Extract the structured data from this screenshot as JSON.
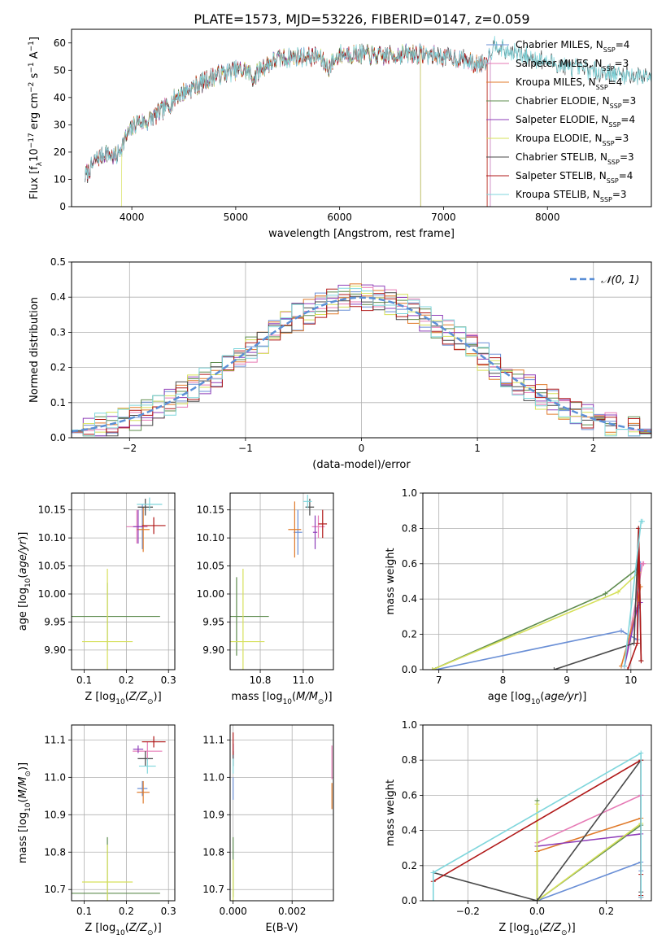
{
  "figure": {
    "title": "PLATE=1573, MJD=53226, FIBERID=0147, z=0.059"
  },
  "colors": {
    "Chabrier MILES": "#6a8fd6",
    "Salpeter MILES": "#e67ab5",
    "Kroupa MILES": "#e07a2a",
    "Chabrier ELODIE": "#5e8c4e",
    "Salpeter ELODIE": "#8e3cb8",
    "Kroupa ELODIE": "#d6e05a",
    "Chabrier STELIB": "#4a4a4a",
    "Salpeter STELIB": "#b01818",
    "Kroupa STELIB": "#7fd6dc"
  },
  "chart_data": [
    {
      "id": "spectrum",
      "type": "line",
      "xlabel": "wavelength [Angstrom, rest frame]",
      "ylabel": "Flux [f_λ10^{-17} erg cm^{-2} s^{-1} A^{-1}]",
      "xlim": [
        3420,
        9000
      ],
      "ylim": [
        0,
        65
      ],
      "xticks": [
        4000,
        5000,
        6000,
        7000,
        8000
      ],
      "yticks": [
        0,
        10,
        20,
        30,
        40,
        50,
        60
      ],
      "grid": false,
      "legend_placement": "right",
      "legend": [
        {
          "model": "Chabrier MILES",
          "label": "Chabrier MILES, N",
          "sub": "SSP",
          "tail": "=4"
        },
        {
          "model": "Salpeter MILES",
          "label": "Salpeter MILES, N",
          "sub": "SSP",
          "tail": "=3"
        },
        {
          "model": "Kroupa MILES",
          "label": "Kroupa MILES, N",
          "sub": "SSP",
          "tail": "=4"
        },
        {
          "model": "Chabrier ELODIE",
          "label": "Chabrier ELODIE, N",
          "sub": "SSP",
          "tail": "=3"
        },
        {
          "model": "Salpeter ELODIE",
          "label": "Salpeter ELODIE, N",
          "sub": "SSP",
          "tail": "=4"
        },
        {
          "model": "Kroupa ELODIE",
          "label": "Kroupa ELODIE, N",
          "sub": "SSP",
          "tail": "=3"
        },
        {
          "model": "Chabrier STELIB",
          "label": "Chabrier STELIB, N",
          "sub": "SSP",
          "tail": "=3"
        },
        {
          "model": "Salpeter STELIB",
          "label": "Salpeter STELIB, N",
          "sub": "SSP",
          "tail": "=4"
        },
        {
          "model": "Kroupa STELIB",
          "label": "Kroupa STELIB, N",
          "sub": "SSP",
          "tail": "=3"
        }
      ],
      "continuum": [
        [
          3550,
          11
        ],
        [
          3650,
          17
        ],
        [
          3750,
          20
        ],
        [
          3850,
          18
        ],
        [
          3950,
          26
        ],
        [
          4050,
          31
        ],
        [
          4150,
          31
        ],
        [
          4250,
          34
        ],
        [
          4350,
          37
        ],
        [
          4450,
          41
        ],
        [
          4600,
          44
        ],
        [
          4800,
          48
        ],
        [
          5000,
          50
        ],
        [
          5100,
          50
        ],
        [
          5170,
          47
        ],
        [
          5250,
          51
        ],
        [
          5400,
          54
        ],
        [
          5600,
          55
        ],
        [
          5800,
          55
        ],
        [
          5890,
          51
        ],
        [
          6000,
          56
        ],
        [
          6200,
          56
        ],
        [
          6400,
          55
        ],
        [
          6600,
          56
        ],
        [
          6800,
          56
        ],
        [
          7000,
          55
        ],
        [
          7200,
          54
        ],
        [
          7300,
          52
        ],
        [
          7400,
          53
        ],
        [
          7500,
          60
        ],
        [
          7600,
          57
        ],
        [
          7800,
          55
        ],
        [
          8000,
          53
        ],
        [
          8200,
          51
        ],
        [
          8400,
          50
        ],
        [
          8600,
          49
        ],
        [
          8800,
          48
        ],
        [
          9000,
          48
        ]
      ],
      "model_ranges": {
        "Chabrier MILES": [
          3550,
          7450
        ],
        "Salpeter MILES": [
          3550,
          7450
        ],
        "Kroupa MILES": [
          3550,
          7420
        ],
        "Chabrier ELODIE": [
          3550,
          6780
        ],
        "Salpeter ELODIE": [
          3550,
          6780
        ],
        "Kroupa ELODIE": [
          3900,
          6780
        ],
        "Chabrier STELIB": [
          3550,
          9000
        ],
        "Salpeter STELIB": [
          3550,
          7420
        ],
        "Kroupa STELIB": [
          3550,
          9000
        ]
      }
    },
    {
      "id": "residual-histogram",
      "type": "histogram",
      "xlabel": "(data-model)/error",
      "ylabel": "Normed distribution",
      "xlim": [
        -2.5,
        2.5
      ],
      "ylim": [
        0,
        0.5
      ],
      "xticks": [
        -2,
        -1,
        0,
        1,
        2
      ],
      "yticks": [
        0.0,
        0.1,
        0.2,
        0.3,
        0.4,
        0.5
      ],
      "grid": true,
      "legend_placement": "top-right",
      "legend": [
        {
          "label": "𝒩(0, 1)",
          "style": "dashed",
          "color": "#5b8fd6"
        }
      ],
      "bin_width": 0.1,
      "note": "nine step histograms scattered around the standard normal curve"
    },
    {
      "id": "age-vs-Z",
      "type": "errorbar",
      "xlabel": "Z [log10(Z/Z⊙)]",
      "ylabel": "age  [log10(age/yr)]",
      "xlim": [
        0.07,
        0.315
      ],
      "ylim": [
        9.865,
        10.18
      ],
      "xticks": [
        0.1,
        0.2,
        0.3
      ],
      "yticks": [
        9.9,
        9.95,
        10.0,
        10.05,
        10.1,
        10.15
      ],
      "grid": true,
      "points": [
        {
          "model": "Chabrier MILES",
          "x": 0.238,
          "xerr": 0.012,
          "y": 10.12,
          "yerr": 0.04
        },
        {
          "model": "Salpeter MILES",
          "x": 0.225,
          "xerr": 0.025,
          "y": 10.12,
          "yerr": 0.03
        },
        {
          "model": "Kroupa MILES",
          "x": 0.24,
          "xerr": 0.015,
          "y": 10.115,
          "yerr": 0.04
        },
        {
          "model": "Chabrier ELODIE",
          "x": 0.155,
          "xerr": 0.125,
          "y": 9.96,
          "yerr": 0.06
        },
        {
          "model": "Salpeter ELODIE",
          "x": 0.228,
          "xerr": 0.012,
          "y": 10.12,
          "yerr": 0.03
        },
        {
          "model": "Kroupa ELODIE",
          "x": 0.155,
          "xerr": 0.06,
          "y": 9.915,
          "yerr": 0.13
        },
        {
          "model": "Chabrier STELIB",
          "x": 0.245,
          "xerr": 0.018,
          "y": 10.155,
          "yerr": 0.015
        },
        {
          "model": "Salpeter STELIB",
          "x": 0.265,
          "xerr": 0.028,
          "y": 10.122,
          "yerr": 0.015
        },
        {
          "model": "Kroupa STELIB",
          "x": 0.255,
          "xerr": 0.03,
          "y": 10.16,
          "yerr": 0.012
        }
      ]
    },
    {
      "id": "age-vs-mass",
      "type": "errorbar",
      "xlabel": "mass [log10(M/M⊙)]",
      "ylabel": "",
      "xlim": [
        10.66,
        11.14
      ],
      "ylim": [
        9.865,
        10.18
      ],
      "xticks": [
        10.8,
        11.0
      ],
      "yticks": [
        9.9,
        9.95,
        10.0,
        10.05,
        10.1,
        10.15
      ],
      "grid": true,
      "points": [
        {
          "model": "Chabrier MILES",
          "x": 10.975,
          "xerr": 0.02,
          "y": 10.11,
          "yerr": 0.04
        },
        {
          "model": "Salpeter MILES",
          "x": 11.07,
          "xerr": 0.03,
          "y": 10.12,
          "yerr": 0.02
        },
        {
          "model": "Kroupa MILES",
          "x": 10.96,
          "xerr": 0.03,
          "y": 10.115,
          "yerr": 0.05
        },
        {
          "model": "Chabrier ELODIE",
          "x": 10.69,
          "xerr": 0.15,
          "y": 9.96,
          "yerr": 0.07
        },
        {
          "model": "Salpeter ELODIE",
          "x": 11.055,
          "xerr": 0.01,
          "y": 10.11,
          "yerr": 0.03
        },
        {
          "model": "Kroupa ELODIE",
          "x": 10.72,
          "xerr": 0.1,
          "y": 9.915,
          "yerr": 0.13
        },
        {
          "model": "Chabrier STELIB",
          "x": 11.03,
          "xerr": 0.02,
          "y": 10.155,
          "yerr": 0.015
        },
        {
          "model": "Salpeter STELIB",
          "x": 11.09,
          "xerr": 0.02,
          "y": 10.125,
          "yerr": 0.025
        },
        {
          "model": "Kroupa STELIB",
          "x": 11.02,
          "xerr": 0.02,
          "y": 10.165,
          "yerr": 0.012
        }
      ]
    },
    {
      "id": "mass-weight-vs-age",
      "type": "line",
      "xlabel": "age  [log10(age/yr)]",
      "ylabel": "mass weight",
      "xlim": [
        6.75,
        10.32
      ],
      "ylim": [
        0,
        1
      ],
      "xticks": [
        7,
        8,
        9,
        10
      ],
      "yticks": [
        0.0,
        0.2,
        0.4,
        0.6,
        0.8,
        1.0
      ],
      "grid": true,
      "series": [
        {
          "model": "Chabrier MILES",
          "x": [
            6.95,
            9.85,
            10.1,
            10.15
          ],
          "y": [
            0.0,
            0.22,
            0.17,
            0.6
          ]
        },
        {
          "model": "Salpeter MILES",
          "x": [
            9.9,
            10.18,
            10.2
          ],
          "y": [
            0.02,
            0.6,
            0.6
          ]
        },
        {
          "model": "Kroupa MILES",
          "x": [
            9.85,
            10.1,
            10.15
          ],
          "y": [
            0.02,
            0.35,
            0.47
          ]
        },
        {
          "model": "Chabrier ELODIE",
          "x": [
            6.9,
            9.6,
            10.1
          ],
          "y": [
            0.0,
            0.43,
            0.57
          ]
        },
        {
          "model": "Salpeter ELODIE",
          "x": [
            9.9,
            10.1,
            10.15
          ],
          "y": [
            0.02,
            0.35,
            0.38
          ]
        },
        {
          "model": "Kroupa ELODIE",
          "x": [
            6.9,
            9.8,
            10.12
          ],
          "y": [
            0.0,
            0.44,
            0.55
          ]
        },
        {
          "model": "Chabrier STELIB",
          "x": [
            8.8,
            10.05,
            10.12,
            10.16
          ],
          "y": [
            0.0,
            0.15,
            0.8,
            0.05
          ]
        },
        {
          "model": "Salpeter STELIB",
          "x": [
            9.95,
            10.1,
            10.12,
            10.16
          ],
          "y": [
            0.0,
            0.15,
            0.8,
            0.05
          ]
        },
        {
          "model": "Kroupa STELIB",
          "x": [
            9.9,
            10.16,
            10.18
          ],
          "y": [
            0.02,
            0.84,
            0.84
          ]
        }
      ]
    },
    {
      "id": "mass-vs-Z",
      "type": "errorbar",
      "xlabel": "Z [log10(Z/Z⊙)]",
      "ylabel": "mass [log10(M/M⊙)]",
      "xlim": [
        0.07,
        0.315
      ],
      "ylim": [
        10.67,
        11.14
      ],
      "xticks": [
        0.1,
        0.2,
        0.3
      ],
      "yticks": [
        10.7,
        10.8,
        10.9,
        11.0,
        11.1
      ],
      "grid": true,
      "points": [
        {
          "model": "Chabrier MILES",
          "x": 0.238,
          "xerr": 0.012,
          "y": 10.97,
          "yerr": 0.02
        },
        {
          "model": "Salpeter MILES",
          "x": 0.25,
          "xerr": 0.035,
          "y": 11.07,
          "yerr": 0.025
        },
        {
          "model": "Kroupa MILES",
          "x": 0.24,
          "xerr": 0.015,
          "y": 10.96,
          "yerr": 0.03
        },
        {
          "model": "Chabrier ELODIE",
          "x": 0.155,
          "xerr": 0.125,
          "y": 10.69,
          "yerr": 0.15
        },
        {
          "model": "Salpeter ELODIE",
          "x": 0.228,
          "xerr": 0.012,
          "y": 11.075,
          "yerr": 0.01
        },
        {
          "model": "Kroupa ELODIE",
          "x": 0.155,
          "xerr": 0.06,
          "y": 10.72,
          "yerr": 0.1
        },
        {
          "model": "Chabrier STELIB",
          "x": 0.245,
          "xerr": 0.018,
          "y": 11.05,
          "yerr": 0.02
        },
        {
          "model": "Salpeter STELIB",
          "x": 0.265,
          "xerr": 0.028,
          "y": 11.095,
          "yerr": 0.015
        },
        {
          "model": "Kroupa STELIB",
          "x": 0.25,
          "xerr": 0.02,
          "y": 11.03,
          "yerr": 0.02
        }
      ]
    },
    {
      "id": "mass-vs-ebv",
      "type": "errorbar",
      "xlabel": "E(B-V)",
      "ylabel": "",
      "xlim": [
        -0.0001,
        0.0034
      ],
      "ylim": [
        10.67,
        11.14
      ],
      "xticks": [
        0.0,
        0.002
      ],
      "yticks": [
        10.7,
        10.8,
        10.9,
        11.0,
        11.1
      ],
      "grid": true,
      "points": [
        {
          "model": "Chabrier MILES",
          "x": 0.0,
          "xerr": 0,
          "y": 10.97,
          "yerr": 0.03
        },
        {
          "model": "Salpeter MILES",
          "x": 0.00335,
          "xerr": 0,
          "y": 11.04,
          "yerr": 0.045
        },
        {
          "model": "Kroupa MILES",
          "x": 0.00335,
          "xerr": 0,
          "y": 10.95,
          "yerr": 0.035
        },
        {
          "model": "Chabrier ELODIE",
          "x": 0.0,
          "xerr": 0,
          "y": 10.76,
          "yerr": 0.08
        },
        {
          "model": "Salpeter ELODIE",
          "x": 0.0,
          "xerr": 0,
          "y": 11.07,
          "yerr": 0.02
        },
        {
          "model": "Kroupa ELODIE",
          "x": 0.0,
          "xerr": 0,
          "y": 10.72,
          "yerr": 0.06
        },
        {
          "model": "Chabrier STELIB",
          "x": 0.0,
          "xerr": 0,
          "y": 11.05,
          "yerr": 0.02
        },
        {
          "model": "Salpeter STELIB",
          "x": 0.0,
          "xerr": 0,
          "y": 11.09,
          "yerr": 0.03
        },
        {
          "model": "Kroupa STELIB",
          "x": 0.0,
          "xerr": 0,
          "y": 11.03,
          "yerr": 0.02
        }
      ]
    },
    {
      "id": "mass-weight-vs-Z",
      "type": "line",
      "xlabel": "Z [log10(Z/Z⊙)]",
      "ylabel": "mass weight",
      "xlim": [
        -0.33,
        0.33
      ],
      "ylim": [
        0,
        1
      ],
      "xticks": [
        -0.2,
        0.0,
        0.2
      ],
      "yticks": [
        0.0,
        0.2,
        0.4,
        0.6,
        0.8,
        1.0
      ],
      "grid": true,
      "series": [
        {
          "model": "Chabrier MILES",
          "x": [
            0.0,
            0.3,
            0.3,
            0.3
          ],
          "y": [
            0.0,
            0.22,
            0.17,
            0.6
          ]
        },
        {
          "model": "Salpeter MILES",
          "x": [
            0.0,
            0.3,
            0.3
          ],
          "y": [
            0.33,
            0.6,
            0.02
          ]
        },
        {
          "model": "Kroupa MILES",
          "x": [
            0.0,
            0.3,
            0.3
          ],
          "y": [
            0.28,
            0.47,
            0.02
          ]
        },
        {
          "model": "Chabrier ELODIE",
          "x": [
            0.0,
            0.0,
            0.3
          ],
          "y": [
            0.57,
            0.0,
            0.43
          ]
        },
        {
          "model": "Salpeter ELODIE",
          "x": [
            0.0,
            0.3,
            0.3
          ],
          "y": [
            0.31,
            0.38,
            0.02
          ]
        },
        {
          "model": "Kroupa ELODIE",
          "x": [
            0.0,
            0.0,
            0.3
          ],
          "y": [
            0.55,
            0.0,
            0.44
          ]
        },
        {
          "model": "Chabrier STELIB",
          "x": [
            -0.3,
            0.0,
            0.3,
            0.3
          ],
          "y": [
            0.16,
            0.0,
            0.8,
            0.05
          ]
        },
        {
          "model": "Salpeter STELIB",
          "x": [
            -0.3,
            0.3,
            0.3,
            0.3
          ],
          "y": [
            0.11,
            0.8,
            0.15,
            0.03
          ]
        },
        {
          "model": "Kroupa STELIB",
          "x": [
            -0.3,
            -0.3,
            0.3,
            0.3
          ],
          "y": [
            0.0,
            0.16,
            0.84,
            0.02
          ]
        }
      ]
    }
  ]
}
